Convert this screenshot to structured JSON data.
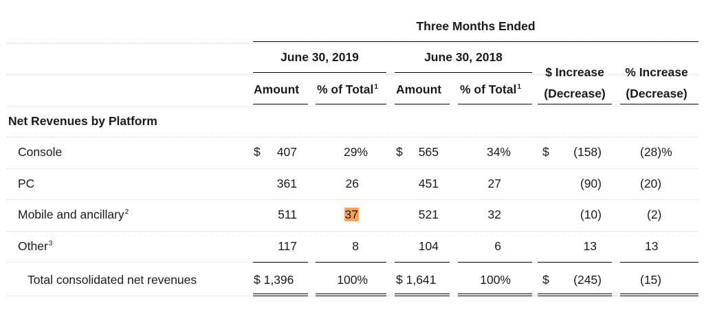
{
  "header": {
    "group_title": "Three Months Ended",
    "period_2019": "June 30, 2019",
    "period_2018": "June 30, 2018",
    "amount_label": "Amount",
    "pct_total_label": "% of Total",
    "pct_total_note": "1",
    "dollar_change_line1": "$ Increase",
    "dollar_change_line2": "(Decrease)",
    "pct_change_line1": "% Increase",
    "pct_change_line2": "(Decrease)"
  },
  "section_title": "Net Revenues by Platform",
  "rows": [
    {
      "label": "Console",
      "note": "",
      "dollar_2019": "$",
      "amt_2019": "407",
      "pct_2019": "29%",
      "dollar_2018": "$",
      "amt_2018": "565",
      "pct_2018": "34%",
      "dollar_chg": "$",
      "chg": "(158)",
      "pct_chg": "(28)%"
    },
    {
      "label": "PC",
      "note": "",
      "dollar_2019": "",
      "amt_2019": "361",
      "pct_2019": "26",
      "dollar_2018": "",
      "amt_2018": "451",
      "pct_2018": "27",
      "dollar_chg": "",
      "chg": "(90)",
      "pct_chg": "(20)"
    },
    {
      "label": "Mobile and ancillary",
      "note": "2",
      "dollar_2019": "",
      "amt_2019": "511",
      "pct_2019": "37",
      "dollar_2018": "",
      "amt_2018": "521",
      "pct_2018": "32",
      "dollar_chg": "",
      "chg": "(10)",
      "pct_chg": "(2)"
    },
    {
      "label": "Other",
      "note": "3",
      "dollar_2019": "",
      "amt_2019": "117",
      "pct_2019": "8",
      "dollar_2018": "",
      "amt_2018": "104",
      "pct_2018": "6",
      "dollar_chg": "",
      "chg": "13",
      "pct_chg": "13"
    }
  ],
  "total": {
    "label": "Total consolidated net revenues",
    "amt_2019": "$ 1,396",
    "pct_2019": "100%",
    "amt_2018": "$ 1,641",
    "pct_2018": "100%",
    "dollar_chg": "$",
    "chg": "(245)",
    "pct_chg": "(15)"
  },
  "highlight_color": "#f7a35c"
}
